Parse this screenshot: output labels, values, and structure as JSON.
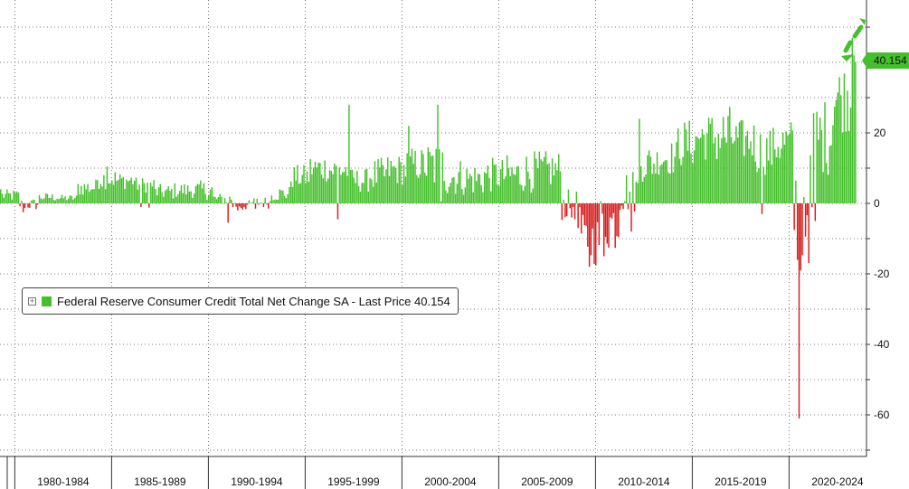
{
  "chart_data": {
    "type": "bar",
    "title": "",
    "xlabel": "",
    "ylabel": "",
    "ylim": [
      -70,
      55
    ],
    "yticks": [
      -60,
      -40,
      -20,
      0,
      20
    ],
    "x_categories": [
      "1980-1984",
      "1985-1989",
      "1990-1994",
      "1995-1999",
      "2000-2004",
      "2005-2009",
      "2010-2014",
      "2015-2019",
      "2020-2024"
    ],
    "grid": true,
    "legend_position": "middle-left",
    "positive_color": "#45c02c",
    "negative_color": "#d81b1b",
    "last_value": 40.154,
    "series": [
      {
        "name": "Federal Reserve Consumer Credit Total Net Change SA",
        "frequency": "monthly",
        "start_year": 1979,
        "annual_ranges": [
          {
            "year": 1979,
            "min": 0.5,
            "max": 4,
            "extremes": [
              [
                0,
                4
              ]
            ]
          },
          {
            "year": 1980,
            "min": -2,
            "max": 1.5,
            "extremes": [
              [
                2,
                -2.5
              ]
            ]
          },
          {
            "year": 1981,
            "min": 0.5,
            "max": 3
          },
          {
            "year": 1982,
            "min": 0.5,
            "max": 2.5
          },
          {
            "year": 1983,
            "min": 2,
            "max": 7
          },
          {
            "year": 1984,
            "min": 4,
            "max": 10,
            "extremes": [
              [
                6,
                10.5
              ]
            ]
          },
          {
            "year": 1985,
            "min": 4,
            "max": 9
          },
          {
            "year": 1986,
            "min": 3,
            "max": 7.5,
            "extremes": [
              [
                3,
                -1
              ],
              [
                8,
                -1.2
              ]
            ]
          },
          {
            "year": 1987,
            "min": 1,
            "max": 5.5
          },
          {
            "year": 1988,
            "min": 1.5,
            "max": 6
          },
          {
            "year": 1989,
            "min": 1,
            "max": 6.5
          },
          {
            "year": 1990,
            "min": -0.5,
            "max": 3,
            "extremes": [
              [
                9,
                -5.5
              ]
            ]
          },
          {
            "year": 1991,
            "min": -2,
            "max": 1,
            "extremes": [
              [
                3,
                -2
              ],
              [
                6,
                -1.8
              ]
            ]
          },
          {
            "year": 1992,
            "min": -1.5,
            "max": 2,
            "extremes": [
              [
                2,
                -1.5
              ]
            ]
          },
          {
            "year": 1993,
            "min": 0.5,
            "max": 5
          },
          {
            "year": 1994,
            "min": 4,
            "max": 11
          },
          {
            "year": 1995,
            "min": 6,
            "max": 14
          },
          {
            "year": 1996,
            "min": 5,
            "max": 14,
            "extremes": [
              [
                5,
                -4.5
              ]
            ]
          },
          {
            "year": 1997,
            "min": 3,
            "max": 10,
            "extremes": [
              [
                0,
                28
              ]
            ]
          },
          {
            "year": 1998,
            "min": 3,
            "max": 13
          },
          {
            "year": 1999,
            "min": 5,
            "max": 14
          },
          {
            "year": 2000,
            "min": 6,
            "max": 16,
            "extremes": [
              [
                1,
                22
              ]
            ]
          },
          {
            "year": 2001,
            "min": 3,
            "max": 18,
            "extremes": [
              [
                7,
                28
              ],
              [
                9,
                0.5
              ]
            ]
          },
          {
            "year": 2002,
            "min": 2,
            "max": 13
          },
          {
            "year": 2003,
            "min": 2,
            "max": 12
          },
          {
            "year": 2004,
            "min": 3,
            "max": 13
          },
          {
            "year": 2005,
            "min": 2,
            "max": 14
          },
          {
            "year": 2006,
            "min": 3,
            "max": 15
          },
          {
            "year": 2007,
            "min": 4,
            "max": 15
          },
          {
            "year": 2008,
            "min": -5,
            "max": 4,
            "extremes": [
              [
                6,
                -4
              ],
              [
                10,
                -7
              ]
            ]
          },
          {
            "year": 2009,
            "min": -18,
            "max": -3,
            "extremes": [
              [
                5,
                -18
              ]
            ]
          },
          {
            "year": 2010,
            "min": -14,
            "max": 3,
            "extremes": [
              [
                2,
                -15
              ]
            ]
          },
          {
            "year": 2011,
            "min": -3,
            "max": 10,
            "extremes": [
              [
                7,
                -8
              ]
            ]
          },
          {
            "year": 2012,
            "min": 6,
            "max": 17,
            "extremes": [
              [
                0,
                24
              ]
            ]
          },
          {
            "year": 2013,
            "min": 8,
            "max": 18
          },
          {
            "year": 2014,
            "min": 10,
            "max": 24
          },
          {
            "year": 2015,
            "min": 12,
            "max": 26
          },
          {
            "year": 2016,
            "min": 10,
            "max": 28
          },
          {
            "year": 2017,
            "min": 12,
            "max": 24
          },
          {
            "year": 2018,
            "min": 8,
            "max": 22,
            "extremes": [
              [
                4,
                -3
              ]
            ]
          },
          {
            "year": 2019,
            "min": 10,
            "max": 24
          },
          {
            "year": 2020,
            "min": -18,
            "max": 15,
            "extremes": [
              [
                2,
                -16
              ],
              [
                3,
                -61
              ],
              [
                4,
                -19
              ]
            ]
          },
          {
            "year": 2021,
            "min": 8,
            "max": 30,
            "extremes": [
              [
                1,
                -5
              ]
            ]
          },
          {
            "year": 2022,
            "min": 20,
            "max": 40
          },
          {
            "year": 2023,
            "min": 20,
            "max": 46,
            "extremes": [
              [
                0,
                47
              ],
              [
                1,
                42
              ],
              [
                2,
                40.154
              ]
            ]
          }
        ]
      }
    ]
  }
}
